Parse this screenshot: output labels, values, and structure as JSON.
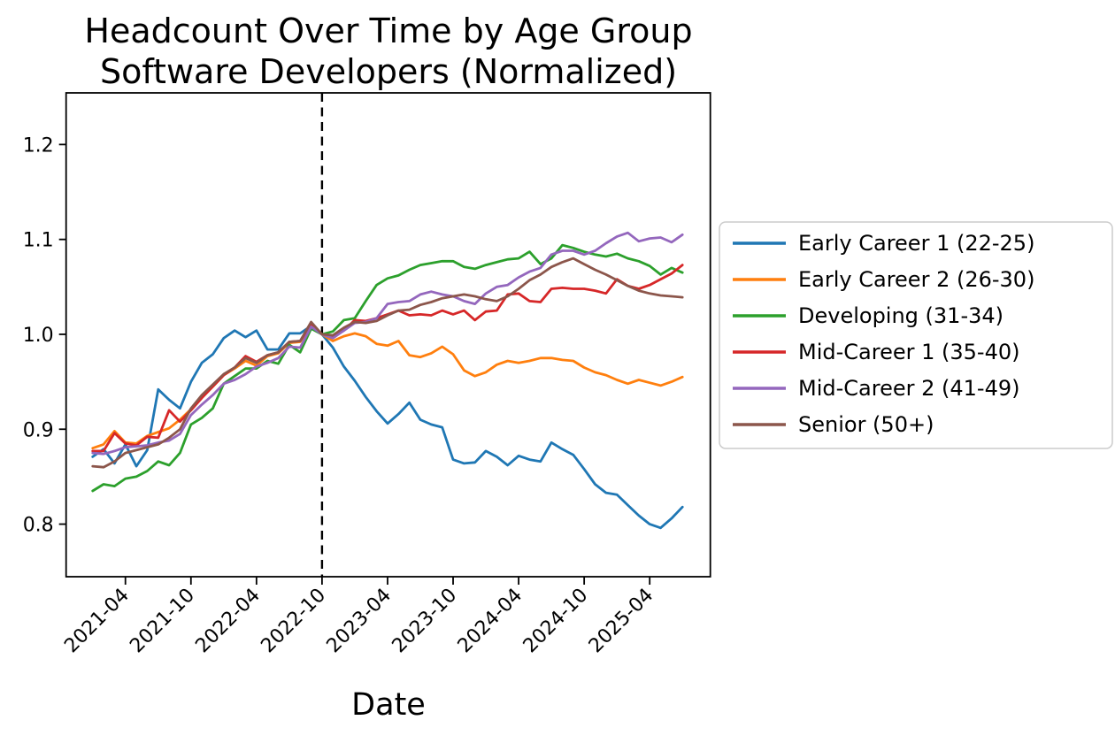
{
  "figure": {
    "title_line1": "Headcount Over Time by Age Group",
    "title_line2": "Software Developers (Normalized)",
    "xlabel": "Date"
  },
  "chart_data": {
    "type": "line",
    "title": "Headcount Over Time by Age Group — Software Developers (Normalized)",
    "xlabel": "Date",
    "ylabel": "",
    "grid": false,
    "legend_position": "right-outside",
    "background_color": "#ffffff",
    "spine_color": "#000000",
    "ylim": [
      0.7446,
      1.2544
    ],
    "xlim_months": [
      -2.43,
      56.55
    ],
    "y_ticks": [
      0.8,
      0.9,
      1.0,
      1.1,
      1.2
    ],
    "y_tick_labels": [
      "0.8",
      "0.9",
      "1.0",
      "1.1",
      "1.2"
    ],
    "x_tick_labels": [
      "2021-04",
      "2021-10",
      "2022-04",
      "2022-10",
      "2023-04",
      "2023-10",
      "2024-04",
      "2024-10",
      "2025-04"
    ],
    "vline": {
      "x": "2022-10",
      "style": "dashed",
      "color": "#000000"
    },
    "x": [
      "2021-01",
      "2021-02",
      "2021-03",
      "2021-04",
      "2021-05",
      "2021-06",
      "2021-07",
      "2021-08",
      "2021-09",
      "2021-10",
      "2021-11",
      "2021-12",
      "2022-01",
      "2022-02",
      "2022-03",
      "2022-04",
      "2022-05",
      "2022-06",
      "2022-07",
      "2022-08",
      "2022-09",
      "2022-10",
      "2022-11",
      "2022-12",
      "2023-01",
      "2023-02",
      "2023-03",
      "2023-04",
      "2023-05",
      "2023-06",
      "2023-07",
      "2023-08",
      "2023-09",
      "2023-10",
      "2023-11",
      "2023-12",
      "2024-01",
      "2024-02",
      "2024-03",
      "2024-04",
      "2024-05",
      "2024-06",
      "2024-07",
      "2024-08",
      "2024-09",
      "2024-10",
      "2024-11",
      "2024-12",
      "2025-01",
      "2025-02",
      "2025-03",
      "2025-04",
      "2025-05",
      "2025-06",
      "2025-07"
    ],
    "series": [
      {
        "name": "Early Career 1 (22-25)",
        "color": "#1f77b4",
        "values": [
          0.871,
          0.879,
          0.864,
          0.884,
          0.861,
          0.878,
          0.942,
          0.931,
          0.922,
          0.95,
          0.97,
          0.979,
          0.996,
          1.004,
          0.997,
          1.004,
          0.984,
          0.984,
          1.001,
          1.001,
          1.009,
          1.0,
          0.986,
          0.966,
          0.951,
          0.934,
          0.919,
          0.906,
          0.916,
          0.928,
          0.91,
          0.905,
          0.902,
          0.868,
          0.864,
          0.865,
          0.877,
          0.871,
          0.862,
          0.872,
          0.868,
          0.866,
          0.886,
          0.879,
          0.873,
          0.858,
          0.842,
          0.833,
          0.831,
          0.82,
          0.809,
          0.8,
          0.796,
          0.806,
          0.818
        ]
      },
      {
        "name": "Early Career 2 (26-30)",
        "color": "#ff7f0e",
        "values": [
          0.88,
          0.884,
          0.898,
          0.886,
          0.885,
          0.893,
          0.897,
          0.901,
          0.91,
          0.921,
          0.934,
          0.945,
          0.957,
          0.964,
          0.972,
          0.967,
          0.977,
          0.98,
          0.991,
          0.992,
          1.009,
          1.0,
          0.993,
          0.998,
          1.001,
          0.998,
          0.99,
          0.988,
          0.993,
          0.978,
          0.976,
          0.98,
          0.987,
          0.979,
          0.962,
          0.956,
          0.96,
          0.968,
          0.972,
          0.97,
          0.972,
          0.975,
          0.975,
          0.973,
          0.972,
          0.965,
          0.96,
          0.957,
          0.952,
          0.948,
          0.952,
          0.949,
          0.946,
          0.95,
          0.955
        ]
      },
      {
        "name": "Developing (31-34)",
        "color": "#2ca02c",
        "values": [
          0.835,
          0.842,
          0.84,
          0.848,
          0.85,
          0.856,
          0.866,
          0.862,
          0.875,
          0.905,
          0.912,
          0.922,
          0.948,
          0.956,
          0.964,
          0.964,
          0.972,
          0.969,
          0.989,
          0.981,
          1.006,
          1.0,
          1.003,
          1.015,
          1.017,
          1.035,
          1.052,
          1.059,
          1.062,
          1.068,
          1.073,
          1.075,
          1.077,
          1.077,
          1.071,
          1.069,
          1.073,
          1.076,
          1.079,
          1.08,
          1.087,
          1.074,
          1.08,
          1.094,
          1.091,
          1.087,
          1.084,
          1.082,
          1.085,
          1.08,
          1.077,
          1.072,
          1.063,
          1.07,
          1.065
        ]
      },
      {
        "name": "Mid-Career 1 (35-40)",
        "color": "#d62728",
        "values": [
          0.877,
          0.877,
          0.896,
          0.885,
          0.883,
          0.892,
          0.891,
          0.92,
          0.908,
          0.92,
          0.933,
          0.945,
          0.957,
          0.965,
          0.977,
          0.971,
          0.978,
          0.981,
          0.992,
          0.993,
          1.01,
          1.0,
          0.998,
          1.004,
          1.015,
          1.014,
          1.017,
          1.021,
          1.025,
          1.02,
          1.021,
          1.02,
          1.025,
          1.021,
          1.025,
          1.015,
          1.024,
          1.025,
          1.042,
          1.043,
          1.035,
          1.034,
          1.048,
          1.049,
          1.048,
          1.048,
          1.046,
          1.043,
          1.058,
          1.051,
          1.048,
          1.052,
          1.058,
          1.064,
          1.073
        ]
      },
      {
        "name": "Mid-Career 2 (41-49)",
        "color": "#9467bd",
        "values": [
          0.875,
          0.874,
          0.877,
          0.881,
          0.882,
          0.883,
          0.886,
          0.888,
          0.895,
          0.915,
          0.926,
          0.936,
          0.948,
          0.952,
          0.958,
          0.966,
          0.97,
          0.975,
          0.987,
          0.986,
          1.008,
          1.0,
          0.996,
          1.004,
          1.012,
          1.013,
          1.017,
          1.032,
          1.034,
          1.035,
          1.042,
          1.045,
          1.042,
          1.04,
          1.035,
          1.032,
          1.043,
          1.05,
          1.052,
          1.06,
          1.066,
          1.07,
          1.084,
          1.088,
          1.088,
          1.084,
          1.088,
          1.096,
          1.103,
          1.107,
          1.098,
          1.101,
          1.102,
          1.097,
          1.105
        ]
      },
      {
        "name": "Senior (50+)",
        "color": "#8c564b",
        "values": [
          0.861,
          0.86,
          0.866,
          0.875,
          0.878,
          0.881,
          0.884,
          0.891,
          0.9,
          0.922,
          0.936,
          0.947,
          0.958,
          0.965,
          0.975,
          0.97,
          0.978,
          0.981,
          0.992,
          0.993,
          1.013,
          1.0,
          0.999,
          1.007,
          1.013,
          1.012,
          1.014,
          1.02,
          1.025,
          1.026,
          1.031,
          1.034,
          1.038,
          1.04,
          1.042,
          1.04,
          1.037,
          1.035,
          1.04,
          1.048,
          1.057,
          1.063,
          1.071,
          1.076,
          1.08,
          1.074,
          1.068,
          1.063,
          1.057,
          1.051,
          1.046,
          1.043,
          1.041,
          1.04,
          1.039
        ]
      }
    ]
  }
}
